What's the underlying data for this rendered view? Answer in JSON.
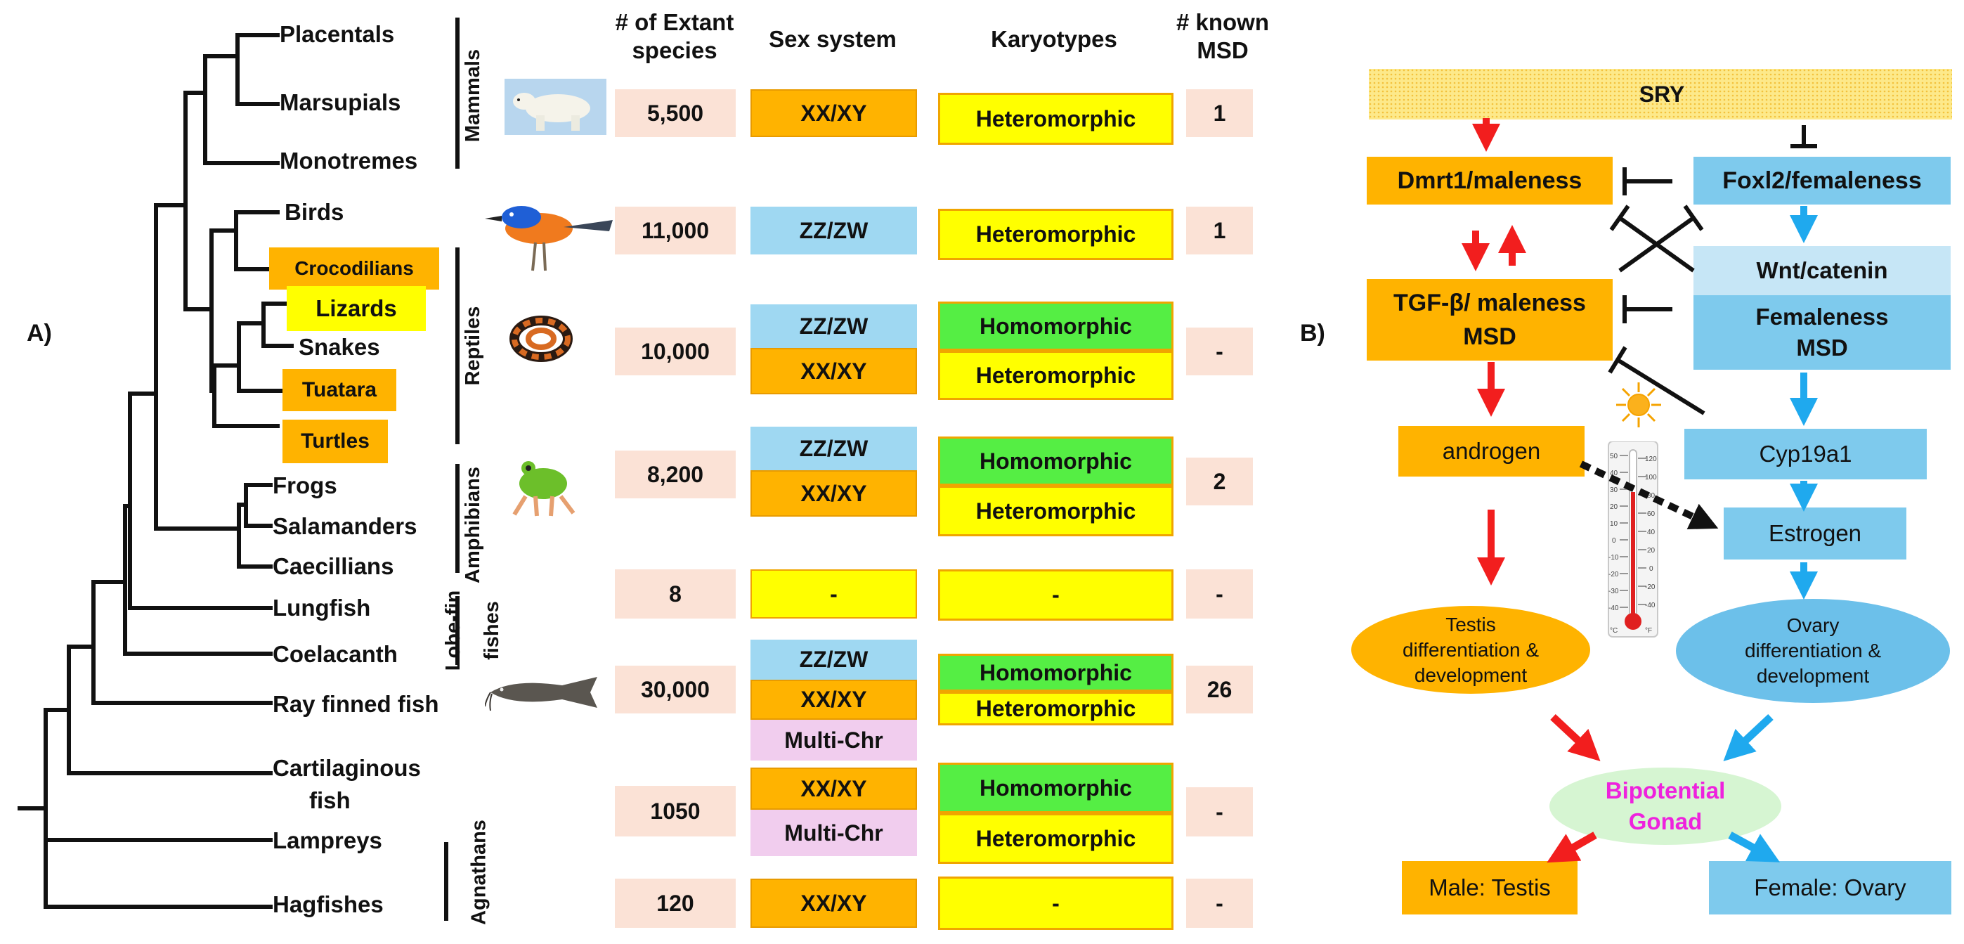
{
  "panel_labels": {
    "a": "A)",
    "b": "B)"
  },
  "headers": {
    "species_line1": "# of Extant",
    "species_line2": "species",
    "sex_system": "Sex system",
    "karyotypes": "Karyotypes",
    "msd_line1": "# known",
    "msd_line2": "MSD"
  },
  "taxa": {
    "placentals": "Placentals",
    "marsupials": "Marsupials",
    "monotremes": "Monotremes",
    "birds": "Birds",
    "crocodilians": "Crocodilians",
    "lizards": "Lizards",
    "snakes": "Snakes",
    "tuatara": "Tuatara",
    "turtles": "Turtles",
    "frogs": "Frogs",
    "salamanders": "Salamanders",
    "caecillians": "Caecillians",
    "lungfish": "Lungfish",
    "coelacanth": "Coelacanth",
    "ray_finned": "Ray finned fish",
    "cartilaginous_1": "Cartilaginous",
    "cartilaginous_2": "fish",
    "lampreys": "Lampreys",
    "hagfishes": "Hagfishes"
  },
  "groups": {
    "mammals": "Mammals",
    "reptiles": "Reptiles",
    "amphibians": "Amphibians",
    "lobefin_1": "Lobe-fin",
    "lobefin_2": "fishes",
    "agnathans": "Agnathans"
  },
  "table": {
    "mammals": {
      "species": "5,500",
      "sex": [
        "XX/XY"
      ],
      "karyo": [
        "Heteromorphic"
      ],
      "msd": "1"
    },
    "birds": {
      "species": "11,000",
      "sex": [
        "ZZ/ZW"
      ],
      "karyo": [
        "Heteromorphic"
      ],
      "msd": "1"
    },
    "reptiles": {
      "species": "10,000",
      "sex": [
        "ZZ/ZW",
        "XX/XY"
      ],
      "karyo": [
        "Homomorphic",
        "Heteromorphic"
      ],
      "msd": "-"
    },
    "amphibians": {
      "species": "8,200",
      "sex": [
        "ZZ/ZW",
        "XX/XY"
      ],
      "karyo": [
        "Homomorphic",
        "Heteromorphic"
      ],
      "msd": "2"
    },
    "lobefin": {
      "species": "8",
      "sex": [
        "-"
      ],
      "karyo": [
        "-"
      ],
      "msd": "-"
    },
    "rayfinned": {
      "species": "30,000",
      "sex": [
        "ZZ/ZW",
        "XX/XY",
        "Multi-Chr"
      ],
      "karyo": [
        "Homomorphic",
        "Heteromorphic"
      ],
      "msd": "26"
    },
    "cartilaginous": {
      "species": "1050",
      "sex": [
        "XX/XY",
        "Multi-Chr"
      ],
      "karyo": [
        "Homomorphic",
        "Heteromorphic"
      ],
      "msd": "-"
    },
    "hagfish": {
      "species": "120",
      "sex": [
        "XX/XY"
      ],
      "karyo": [
        "-"
      ],
      "msd": "-"
    }
  },
  "pathway": {
    "sry": "SRY",
    "dmrt1": "Dmrt1/maleness",
    "foxl2": "Foxl2/femaleness",
    "wnt": "Wnt/catenin",
    "fem_msd_1": "Femaleness",
    "fem_msd_2": "MSD",
    "tgf_1": "TGF-β/ maleness",
    "tgf_2": "MSD",
    "androgen": "androgen",
    "cyp19a1": "Cyp19a1",
    "estrogen": "Estrogen",
    "testis_1": "Testis",
    "testis_2": "differentiation &",
    "testis_3": "development",
    "ovary_1": "Ovary",
    "ovary_2": "differentiation &",
    "ovary_3": "development",
    "gonad_1": "Bipotential",
    "gonad_2": "Gonad",
    "male": "Male: Testis",
    "female": "Female: Ovary"
  },
  "thermometer": {
    "left_ticks": [
      "50",
      "40",
      "30",
      "20",
      "10",
      "0",
      "-10",
      "-20",
      "-30",
      "-40"
    ],
    "right_ticks": [
      "120",
      "100",
      "80",
      "60",
      "40",
      "20",
      "0",
      "-20",
      "-40"
    ],
    "unit_c": "°C",
    "unit_f": "°F"
  },
  "colors": {
    "orange": "#ffb300",
    "blue": "#7ecaed",
    "yellow": "#ffff00",
    "green": "#55ee44",
    "pink": "#fbe2d6",
    "lilac": "#f1cdee",
    "red_arrow": "#f21e1e",
    "blue_arrow": "#1fa9ee",
    "gonad_text": "#ee22dd"
  }
}
